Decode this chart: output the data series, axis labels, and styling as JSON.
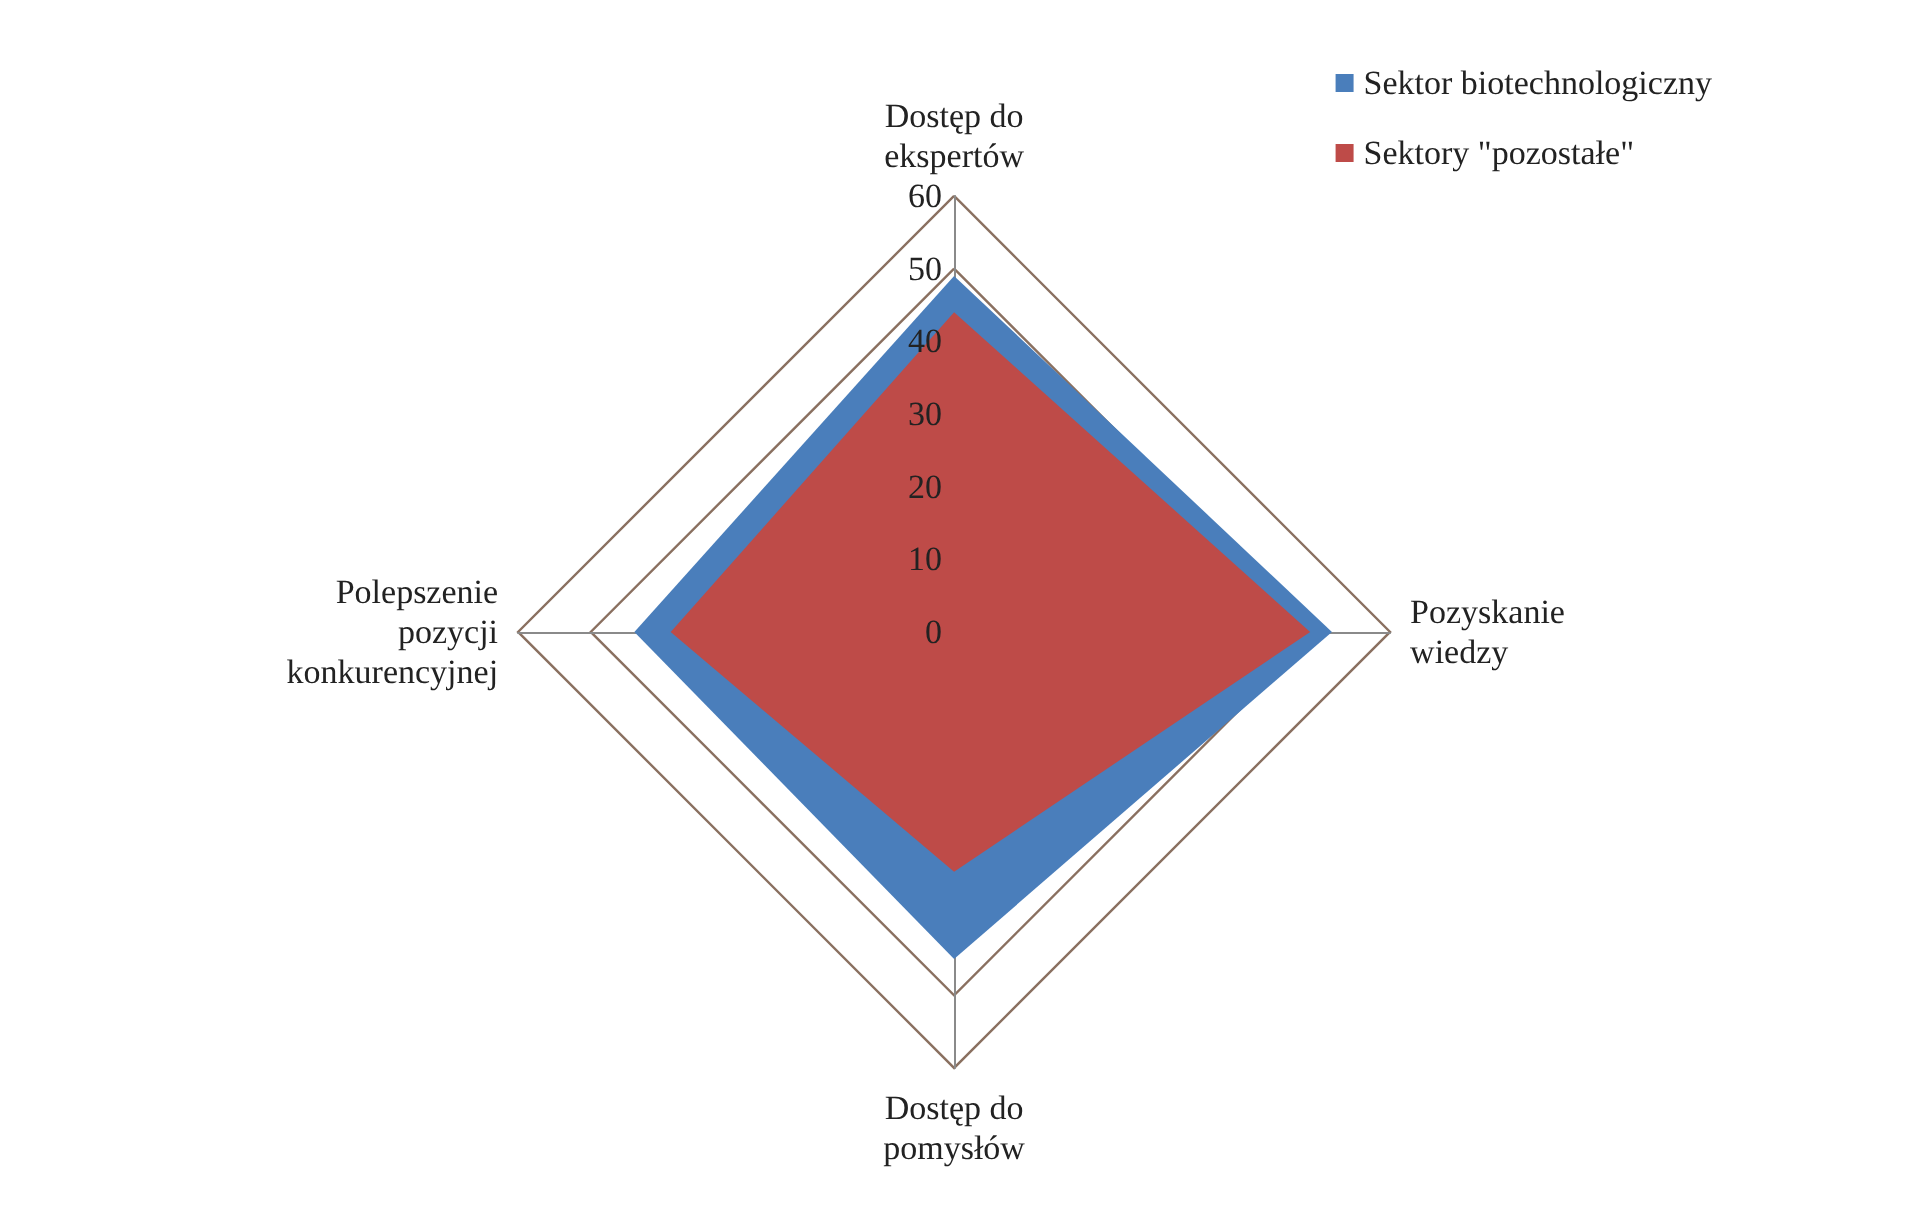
{
  "chart_data": {
    "type": "radar",
    "categories": [
      "Dostęp do ekspertów",
      "Pozyskanie wiedzy",
      "Dostęp do pomysłów",
      "Polepszenie pozycji konkurencyjnej"
    ],
    "series": [
      {
        "name": "Sektor biotechnologiczny",
        "color": "#4a7ebb",
        "values": [
          49,
          52,
          45,
          44
        ]
      },
      {
        "name": "Sektory \"pozostałe\"",
        "color": "#be4b48",
        "values": [
          44,
          49,
          33,
          39
        ]
      }
    ],
    "ylim": [
      0,
      60
    ],
    "yticks": [
      0,
      10,
      20,
      30,
      40,
      50,
      60
    ],
    "legend": "top right"
  }
}
